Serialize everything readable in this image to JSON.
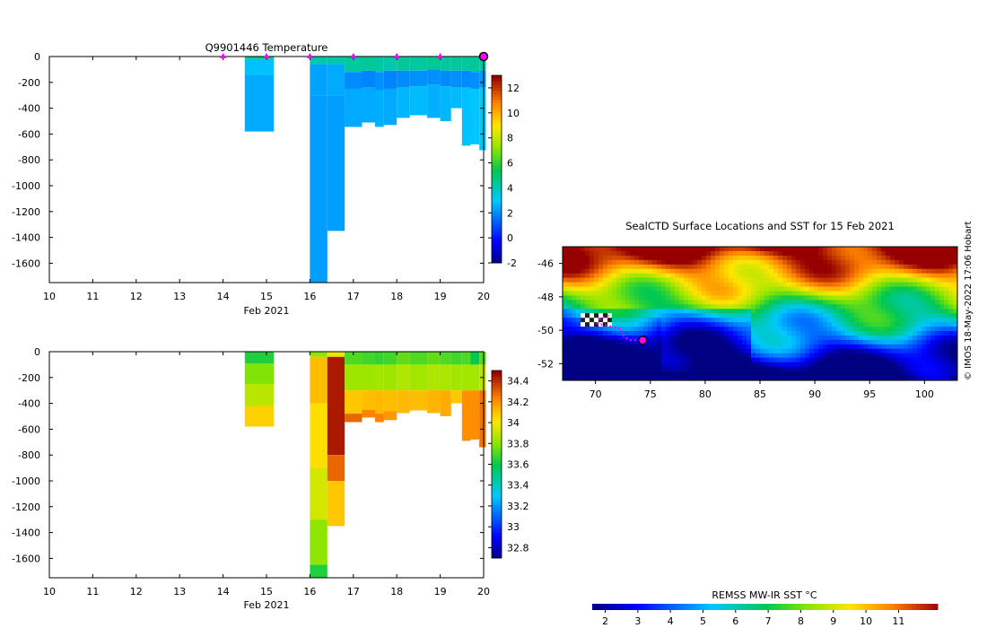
{
  "chart_data": [
    {
      "id": "temperature",
      "type": "heatmap",
      "title": "Q9901446  Temperature",
      "xlabel": "Feb 2021",
      "x_ticks": [
        10,
        11,
        12,
        13,
        14,
        15,
        16,
        17,
        18,
        19,
        20
      ],
      "xlim": [
        10,
        20
      ],
      "y_ticks": [
        0,
        -200,
        -400,
        -600,
        -800,
        -1000,
        -1200,
        -1400,
        -1600
      ],
      "ylim": [
        -1750,
        0
      ],
      "colorbar": {
        "ticks": [
          "12",
          "10",
          "8",
          "6",
          "4",
          "2",
          "0",
          "-2"
        ],
        "range": [
          -2,
          13
        ]
      },
      "profile_markers": [
        14,
        15,
        16,
        17,
        18,
        19,
        20
      ],
      "current_marker": 20,
      "profiles": [
        {
          "t0": 14.5,
          "t1": 15.17,
          "depth": 580,
          "layers": [
            [
              0,
              20,
              4.5
            ],
            [
              20,
              140,
              3.0
            ],
            [
              140,
              580,
              2.6
            ]
          ]
        },
        {
          "t0": 16.0,
          "t1": 16.4,
          "depth": 1750,
          "layers": [
            [
              0,
              60,
              4.2
            ],
            [
              60,
              300,
              2.5
            ],
            [
              300,
              1750,
              2.4
            ]
          ]
        },
        {
          "t0": 16.4,
          "t1": 16.8,
          "depth": 1350,
          "layers": [
            [
              0,
              60,
              4.3
            ],
            [
              60,
              300,
              2.6
            ],
            [
              300,
              1350,
              2.4
            ]
          ]
        },
        {
          "t0": 16.8,
          "t1": 17.2,
          "depth": 545,
          "layers": [
            [
              0,
              120,
              4.4
            ],
            [
              120,
              250,
              2.1
            ],
            [
              250,
              545,
              2.6
            ]
          ]
        },
        {
          "t0": 17.2,
          "t1": 17.5,
          "depth": 510,
          "layers": [
            [
              0,
              110,
              4.5
            ],
            [
              110,
              240,
              2.0
            ],
            [
              240,
              510,
              2.6
            ]
          ]
        },
        {
          "t0": 17.5,
          "t1": 17.7,
          "depth": 545,
          "layers": [
            [
              0,
              120,
              4.4
            ],
            [
              120,
              260,
              2.2
            ],
            [
              260,
              545,
              2.7
            ]
          ]
        },
        {
          "t0": 17.7,
          "t1": 18.0,
          "depth": 530,
          "layers": [
            [
              0,
              110,
              4.3
            ],
            [
              110,
              250,
              2.0
            ],
            [
              250,
              530,
              2.6
            ]
          ]
        },
        {
          "t0": 18.0,
          "t1": 18.3,
          "depth": 475,
          "layers": [
            [
              0,
              110,
              4.5
            ],
            [
              110,
              240,
              2.1
            ],
            [
              240,
              475,
              2.8
            ]
          ]
        },
        {
          "t0": 18.3,
          "t1": 18.7,
          "depth": 455,
          "layers": [
            [
              0,
              110,
              4.4
            ],
            [
              110,
              230,
              2.2
            ],
            [
              230,
              455,
              2.9
            ]
          ]
        },
        {
          "t0": 18.7,
          "t1": 19.0,
          "depth": 475,
          "layers": [
            [
              0,
              100,
              4.6
            ],
            [
              100,
              220,
              2.2
            ],
            [
              220,
              475,
              2.7
            ]
          ]
        },
        {
          "t0": 19.0,
          "t1": 19.25,
          "depth": 500,
          "layers": [
            [
              0,
              110,
              4.4
            ],
            [
              110,
              230,
              2.1
            ],
            [
              230,
              500,
              2.8
            ]
          ]
        },
        {
          "t0": 19.25,
          "t1": 19.5,
          "depth": 400,
          "layers": [
            [
              0,
              110,
              4.5
            ],
            [
              110,
              240,
              2.2
            ],
            [
              240,
              400,
              2.9
            ]
          ]
        },
        {
          "t0": 19.5,
          "t1": 19.7,
          "depth": 690,
          "layers": [
            [
              0,
              110,
              4.4
            ],
            [
              110,
              240,
              2.1
            ],
            [
              240,
              690,
              3.0
            ]
          ]
        },
        {
          "t0": 19.7,
          "t1": 19.9,
          "depth": 680,
          "layers": [
            [
              0,
              120,
              4.5
            ],
            [
              120,
              250,
              2.2
            ],
            [
              250,
              680,
              3.1
            ]
          ]
        },
        {
          "t0": 19.9,
          "t1": 20.05,
          "depth": 725,
          "layers": [
            [
              0,
              110,
              4.4
            ],
            [
              110,
              240,
              2.3
            ],
            [
              240,
              725,
              3.2
            ]
          ]
        }
      ]
    },
    {
      "id": "salinity",
      "type": "heatmap",
      "title": "",
      "xlabel": "Feb 2021",
      "x_ticks": [
        10,
        11,
        12,
        13,
        14,
        15,
        16,
        17,
        18,
        19,
        20
      ],
      "xlim": [
        10,
        20
      ],
      "y_ticks": [
        0,
        -200,
        -400,
        -600,
        -800,
        -1000,
        -1200,
        -1400,
        -1600
      ],
      "ylim": [
        -1750,
        0
      ],
      "colorbar": {
        "ticks": [
          "34.4",
          "34.2",
          "34",
          "33.8",
          "33.6",
          "33.4",
          "33.2",
          "33",
          "32.8"
        ],
        "range": [
          32.7,
          34.5
        ]
      },
      "profiles": [
        {
          "t0": 14.5,
          "t1": 15.17,
          "depth": 580,
          "layers": [
            [
              0,
              90,
              33.65
            ],
            [
              90,
              250,
              33.8
            ],
            [
              250,
              420,
              33.9
            ],
            [
              420,
              580,
              34.08
            ]
          ]
        },
        {
          "t0": 16.0,
          "t1": 16.4,
          "depth": 1750,
          "layers": [
            [
              0,
              40,
              33.82
            ],
            [
              40,
              400,
              34.12
            ],
            [
              400,
              900,
              34.05
            ],
            [
              900,
              1300,
              33.95
            ],
            [
              1300,
              1650,
              33.82
            ],
            [
              1650,
              1750,
              33.65
            ]
          ]
        },
        {
          "t0": 16.4,
          "t1": 16.8,
          "depth": 1350,
          "layers": [
            [
              0,
              40,
              34.0
            ],
            [
              40,
              800,
              34.45
            ],
            [
              800,
              1000,
              34.3
            ],
            [
              1000,
              1350,
              34.1
            ]
          ]
        },
        {
          "t0": 16.8,
          "t1": 17.2,
          "depth": 545,
          "layers": [
            [
              0,
              100,
              33.72
            ],
            [
              100,
              300,
              33.85
            ],
            [
              300,
              480,
              34.1
            ],
            [
              480,
              545,
              34.3
            ]
          ]
        },
        {
          "t0": 17.2,
          "t1": 17.5,
          "depth": 510,
          "layers": [
            [
              0,
              100,
              33.7
            ],
            [
              100,
              300,
              33.85
            ],
            [
              300,
              450,
              34.12
            ],
            [
              450,
              510,
              34.25
            ]
          ]
        },
        {
          "t0": 17.5,
          "t1": 17.7,
          "depth": 545,
          "layers": [
            [
              0,
              100,
              33.68
            ],
            [
              100,
              300,
              33.86
            ],
            [
              300,
              480,
              34.13
            ],
            [
              480,
              545,
              34.25
            ]
          ]
        },
        {
          "t0": 17.7,
          "t1": 18.0,
          "depth": 530,
          "layers": [
            [
              0,
              100,
              33.7
            ],
            [
              100,
              300,
              33.85
            ],
            [
              300,
              460,
              34.12
            ],
            [
              460,
              530,
              34.2
            ]
          ]
        },
        {
          "t0": 18.0,
          "t1": 18.3,
          "depth": 475,
          "layers": [
            [
              0,
              100,
              33.75
            ],
            [
              100,
              300,
              33.88
            ],
            [
              300,
              475,
              34.13
            ]
          ]
        },
        {
          "t0": 18.3,
          "t1": 18.7,
          "depth": 455,
          "layers": [
            [
              0,
              100,
              33.72
            ],
            [
              100,
              300,
              33.86
            ],
            [
              300,
              455,
              34.12
            ]
          ]
        },
        {
          "t0": 18.7,
          "t1": 19.0,
          "depth": 475,
          "layers": [
            [
              0,
              100,
              33.75
            ],
            [
              100,
              300,
              33.88
            ],
            [
              300,
              475,
              34.14
            ]
          ]
        },
        {
          "t0": 19.0,
          "t1": 19.25,
          "depth": 500,
          "layers": [
            [
              0,
              100,
              33.72
            ],
            [
              100,
              300,
              33.87
            ],
            [
              300,
              500,
              34.16
            ]
          ]
        },
        {
          "t0": 19.25,
          "t1": 19.5,
          "depth": 400,
          "layers": [
            [
              0,
              100,
              33.7
            ],
            [
              100,
              300,
              33.86
            ],
            [
              300,
              400,
              34.1
            ]
          ]
        },
        {
          "t0": 19.5,
          "t1": 19.7,
          "depth": 690,
          "layers": [
            [
              0,
              100,
              33.72
            ],
            [
              100,
              300,
              33.86
            ],
            [
              300,
              690,
              34.22
            ]
          ]
        },
        {
          "t0": 19.7,
          "t1": 19.9,
          "depth": 680,
          "layers": [
            [
              0,
              100,
              33.6
            ],
            [
              100,
              300,
              33.86
            ],
            [
              300,
              680,
              34.22
            ]
          ]
        },
        {
          "t0": 19.9,
          "t1": 20.05,
          "depth": 740,
          "layers": [
            [
              0,
              100,
              33.72
            ],
            [
              100,
              300,
              33.9
            ],
            [
              300,
              740,
              34.28
            ]
          ]
        }
      ]
    },
    {
      "id": "sst_map",
      "type": "heatmap",
      "title": "SealCTD Surface Locations and SST for 15 Feb 2021",
      "x_ticks": [
        70,
        75,
        80,
        85,
        90,
        95,
        100
      ],
      "xlim": [
        67,
        103
      ],
      "y_ticks": [
        -46,
        -48,
        -50,
        -52
      ],
      "ylim": [
        -53,
        -45
      ],
      "colorbar": {
        "label": "REMSS MW-IR SST °C",
        "ticks": [
          "2",
          "3",
          "4",
          "5",
          "6",
          "7",
          "8",
          "9",
          "10",
          "11"
        ],
        "range": [
          1.6,
          12.2
        ]
      },
      "track": [
        [
          71.2,
          -49.1
        ],
        [
          70.4,
          -49.3
        ],
        [
          70.2,
          -49.6
        ],
        [
          72.3,
          -49.9
        ],
        [
          72.6,
          -50.4
        ],
        [
          73.2,
          -50.6
        ],
        [
          74.3,
          -50.6
        ]
      ],
      "current_position": [
        74.3,
        -50.6
      ]
    }
  ],
  "credit": "© IMOS 18-May-2022 17:06 Hobart",
  "colors": {
    "marker": "#ff00ff",
    "background": "#ffffff"
  }
}
